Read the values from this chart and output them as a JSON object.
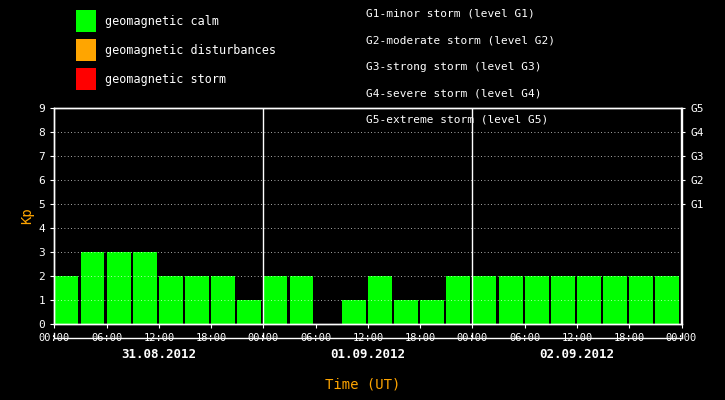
{
  "background_color": "#000000",
  "plot_bg_color": "#000000",
  "bar_color": "#00ff00",
  "grid_color": "#ffffff",
  "text_color": "#ffffff",
  "orange_color": "#ffa500",
  "days": [
    "31.08.2012",
    "01.09.2012",
    "02.09.2012"
  ],
  "kp_values": [
    [
      2,
      3,
      3,
      3,
      2,
      2,
      2,
      1
    ],
    [
      2,
      2,
      0,
      1,
      2,
      1,
      1,
      2
    ],
    [
      2,
      2,
      2,
      2,
      2,
      2,
      2,
      2
    ]
  ],
  "ylim": [
    0,
    9
  ],
  "yticks": [
    0,
    1,
    2,
    3,
    4,
    5,
    6,
    7,
    8,
    9
  ],
  "time_labels": [
    "00:00",
    "06:00",
    "12:00",
    "18:00",
    "00:00"
  ],
  "legend_items": [
    {
      "label": "geomagnetic calm",
      "color": "#00ff00"
    },
    {
      "label": "geomagnetic disturbances",
      "color": "#ffa500"
    },
    {
      "label": "geomagnetic storm",
      "color": "#ff0000"
    }
  ],
  "storm_legend": [
    "G1-minor storm (level G1)",
    "G2-moderate storm (level G2)",
    "G3-strong storm (level G3)",
    "G4-severe storm (level G4)",
    "G5-extreme storm (level G5)"
  ],
  "xlabel": "Time (UT)",
  "ylabel": "Kp",
  "right_yticks": [
    5,
    6,
    7,
    8,
    9
  ],
  "right_yticklabels": [
    "G1",
    "G2",
    "G3",
    "G4",
    "G5"
  ]
}
